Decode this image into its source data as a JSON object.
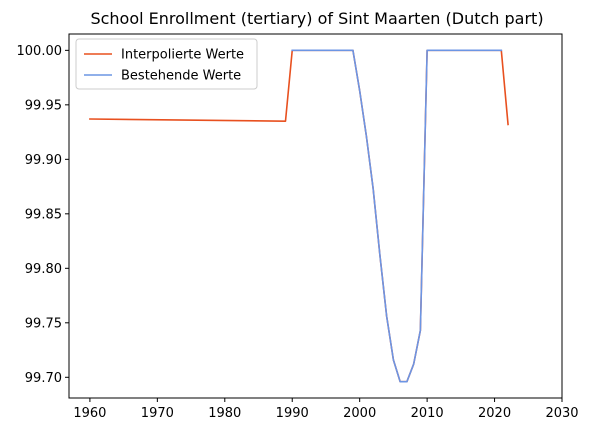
{
  "chart_data": {
    "type": "line",
    "title": "School Enrollment (tertiary) of Sint Maarten (Dutch part)",
    "xlabel": "",
    "ylabel": "",
    "xlim": [
      1956.9,
      2030
    ],
    "ylim": [
      99.681,
      100.015
    ],
    "xticks": [
      1960,
      1970,
      1980,
      1990,
      2000,
      2010,
      2020,
      2030
    ],
    "yticks": [
      99.7,
      99.75,
      99.8,
      99.85,
      99.9,
      99.95,
      100.0
    ],
    "ytick_labels": [
      "99.70",
      "99.75",
      "99.80",
      "99.85",
      "99.90",
      "99.95",
      "100.00"
    ],
    "grid": false,
    "legend_position": "top-left",
    "colors": {
      "interpolated": "#e8501f",
      "existing": "#6c95e4"
    },
    "series": [
      {
        "name": "Interpolierte Werte",
        "color": "#e8501f",
        "x": [
          1960,
          1989,
          1990,
          1999,
          2000,
          2001,
          2002,
          2003,
          2004,
          2005,
          2006,
          2007,
          2008,
          2009,
          2010,
          2021,
          2022
        ],
        "y": [
          99.937,
          99.935,
          100.0,
          100.0,
          99.963,
          99.921,
          99.873,
          99.812,
          99.756,
          99.716,
          99.696,
          99.696,
          99.712,
          99.743,
          100.0,
          100.0,
          99.932
        ]
      },
      {
        "name": "Bestehende Werte",
        "color": "#6c95e4",
        "x": [
          1990,
          1999,
          2000,
          2001,
          2002,
          2003,
          2004,
          2005,
          2006,
          2007,
          2008,
          2009,
          2010,
          2021
        ],
        "y": [
          100.0,
          100.0,
          99.963,
          99.921,
          99.873,
          99.812,
          99.756,
          99.716,
          99.696,
          99.696,
          99.712,
          99.743,
          100.0,
          100.0
        ]
      }
    ]
  }
}
